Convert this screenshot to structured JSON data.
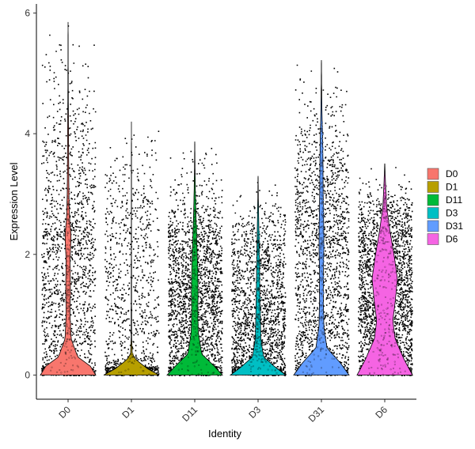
{
  "chart_data": {
    "type": "violin",
    "title": "",
    "xlabel": "Identity",
    "ylabel": "Expression Level",
    "ylim": [
      -0.4,
      6.15
    ],
    "yticks": [
      0,
      2,
      4,
      6
    ],
    "grid": false,
    "legend_position": "right",
    "jitter_points": true,
    "series": [
      {
        "name": "D0",
        "color": "#F8766D",
        "max": 5.85,
        "density": [
          [
            0,
            20
          ],
          [
            0.15,
            16
          ],
          [
            0.3,
            7
          ],
          [
            0.6,
            2.2
          ],
          [
            1,
            1.4
          ],
          [
            1.5,
            1.7
          ],
          [
            1.9,
            1.4
          ],
          [
            2.3,
            2.2
          ],
          [
            2.6,
            1.1
          ],
          [
            3,
            0.6
          ],
          [
            3.6,
            0.4
          ],
          [
            4.2,
            0.3
          ],
          [
            4.7,
            0.15
          ],
          [
            5.3,
            0.05
          ],
          [
            5.85,
            0.02
          ]
        ]
      },
      {
        "name": "D1",
        "color": "#B79F00",
        "max": 4.2,
        "density": [
          [
            0,
            20
          ],
          [
            0.1,
            12
          ],
          [
            0.25,
            3.5
          ],
          [
            0.35,
            0.6
          ],
          [
            0.6,
            0.2
          ],
          [
            1.5,
            0.1
          ],
          [
            3,
            0.05
          ],
          [
            4.2,
            0.02
          ]
        ]
      },
      {
        "name": "D11",
        "color": "#00BA38",
        "max": 3.87,
        "density": [
          [
            0,
            20
          ],
          [
            0.15,
            14
          ],
          [
            0.35,
            5
          ],
          [
            0.7,
            2.6
          ],
          [
            1,
            2.2
          ],
          [
            1.4,
            2.4
          ],
          [
            1.8,
            2.1
          ],
          [
            2.2,
            1.5
          ],
          [
            2.6,
            0.9
          ],
          [
            3,
            0.5
          ],
          [
            3.4,
            0.2
          ],
          [
            3.87,
            0.02
          ]
        ]
      },
      {
        "name": "D3",
        "color": "#00BFC4",
        "max": 3.3,
        "density": [
          [
            0,
            20
          ],
          [
            0.12,
            13
          ],
          [
            0.3,
            4
          ],
          [
            0.6,
            2
          ],
          [
            1,
            1.6
          ],
          [
            1.5,
            1.2
          ],
          [
            2,
            0.9
          ],
          [
            2.5,
            0.5
          ],
          [
            3,
            0.15
          ],
          [
            3.3,
            0.02
          ]
        ]
      },
      {
        "name": "D31",
        "color": "#619CFF",
        "max": 5.22,
        "density": [
          [
            0,
            16
          ],
          [
            0.2,
            11
          ],
          [
            0.45,
            3.2
          ],
          [
            0.8,
            1.4
          ],
          [
            1.2,
            1.1
          ],
          [
            1.7,
            1.1
          ],
          [
            2.1,
            1.4
          ],
          [
            2.5,
            1.3
          ],
          [
            3,
            1
          ],
          [
            3.5,
            0.9
          ],
          [
            3.9,
            0.7
          ],
          [
            4.4,
            0.3
          ],
          [
            4.8,
            0.12
          ],
          [
            5.22,
            0.02
          ]
        ]
      },
      {
        "name": "D6",
        "color": "#F564E3",
        "max": 3.5,
        "density": [
          [
            0,
            12
          ],
          [
            0.25,
            8.5
          ],
          [
            0.6,
            4.5
          ],
          [
            0.9,
            3.5
          ],
          [
            1.2,
            4.5
          ],
          [
            1.6,
            5.5
          ],
          [
            2,
            4
          ],
          [
            2.4,
            2.2
          ],
          [
            2.8,
            0.8
          ],
          [
            3.2,
            0.3
          ],
          [
            3.5,
            0.02
          ]
        ]
      }
    ]
  }
}
